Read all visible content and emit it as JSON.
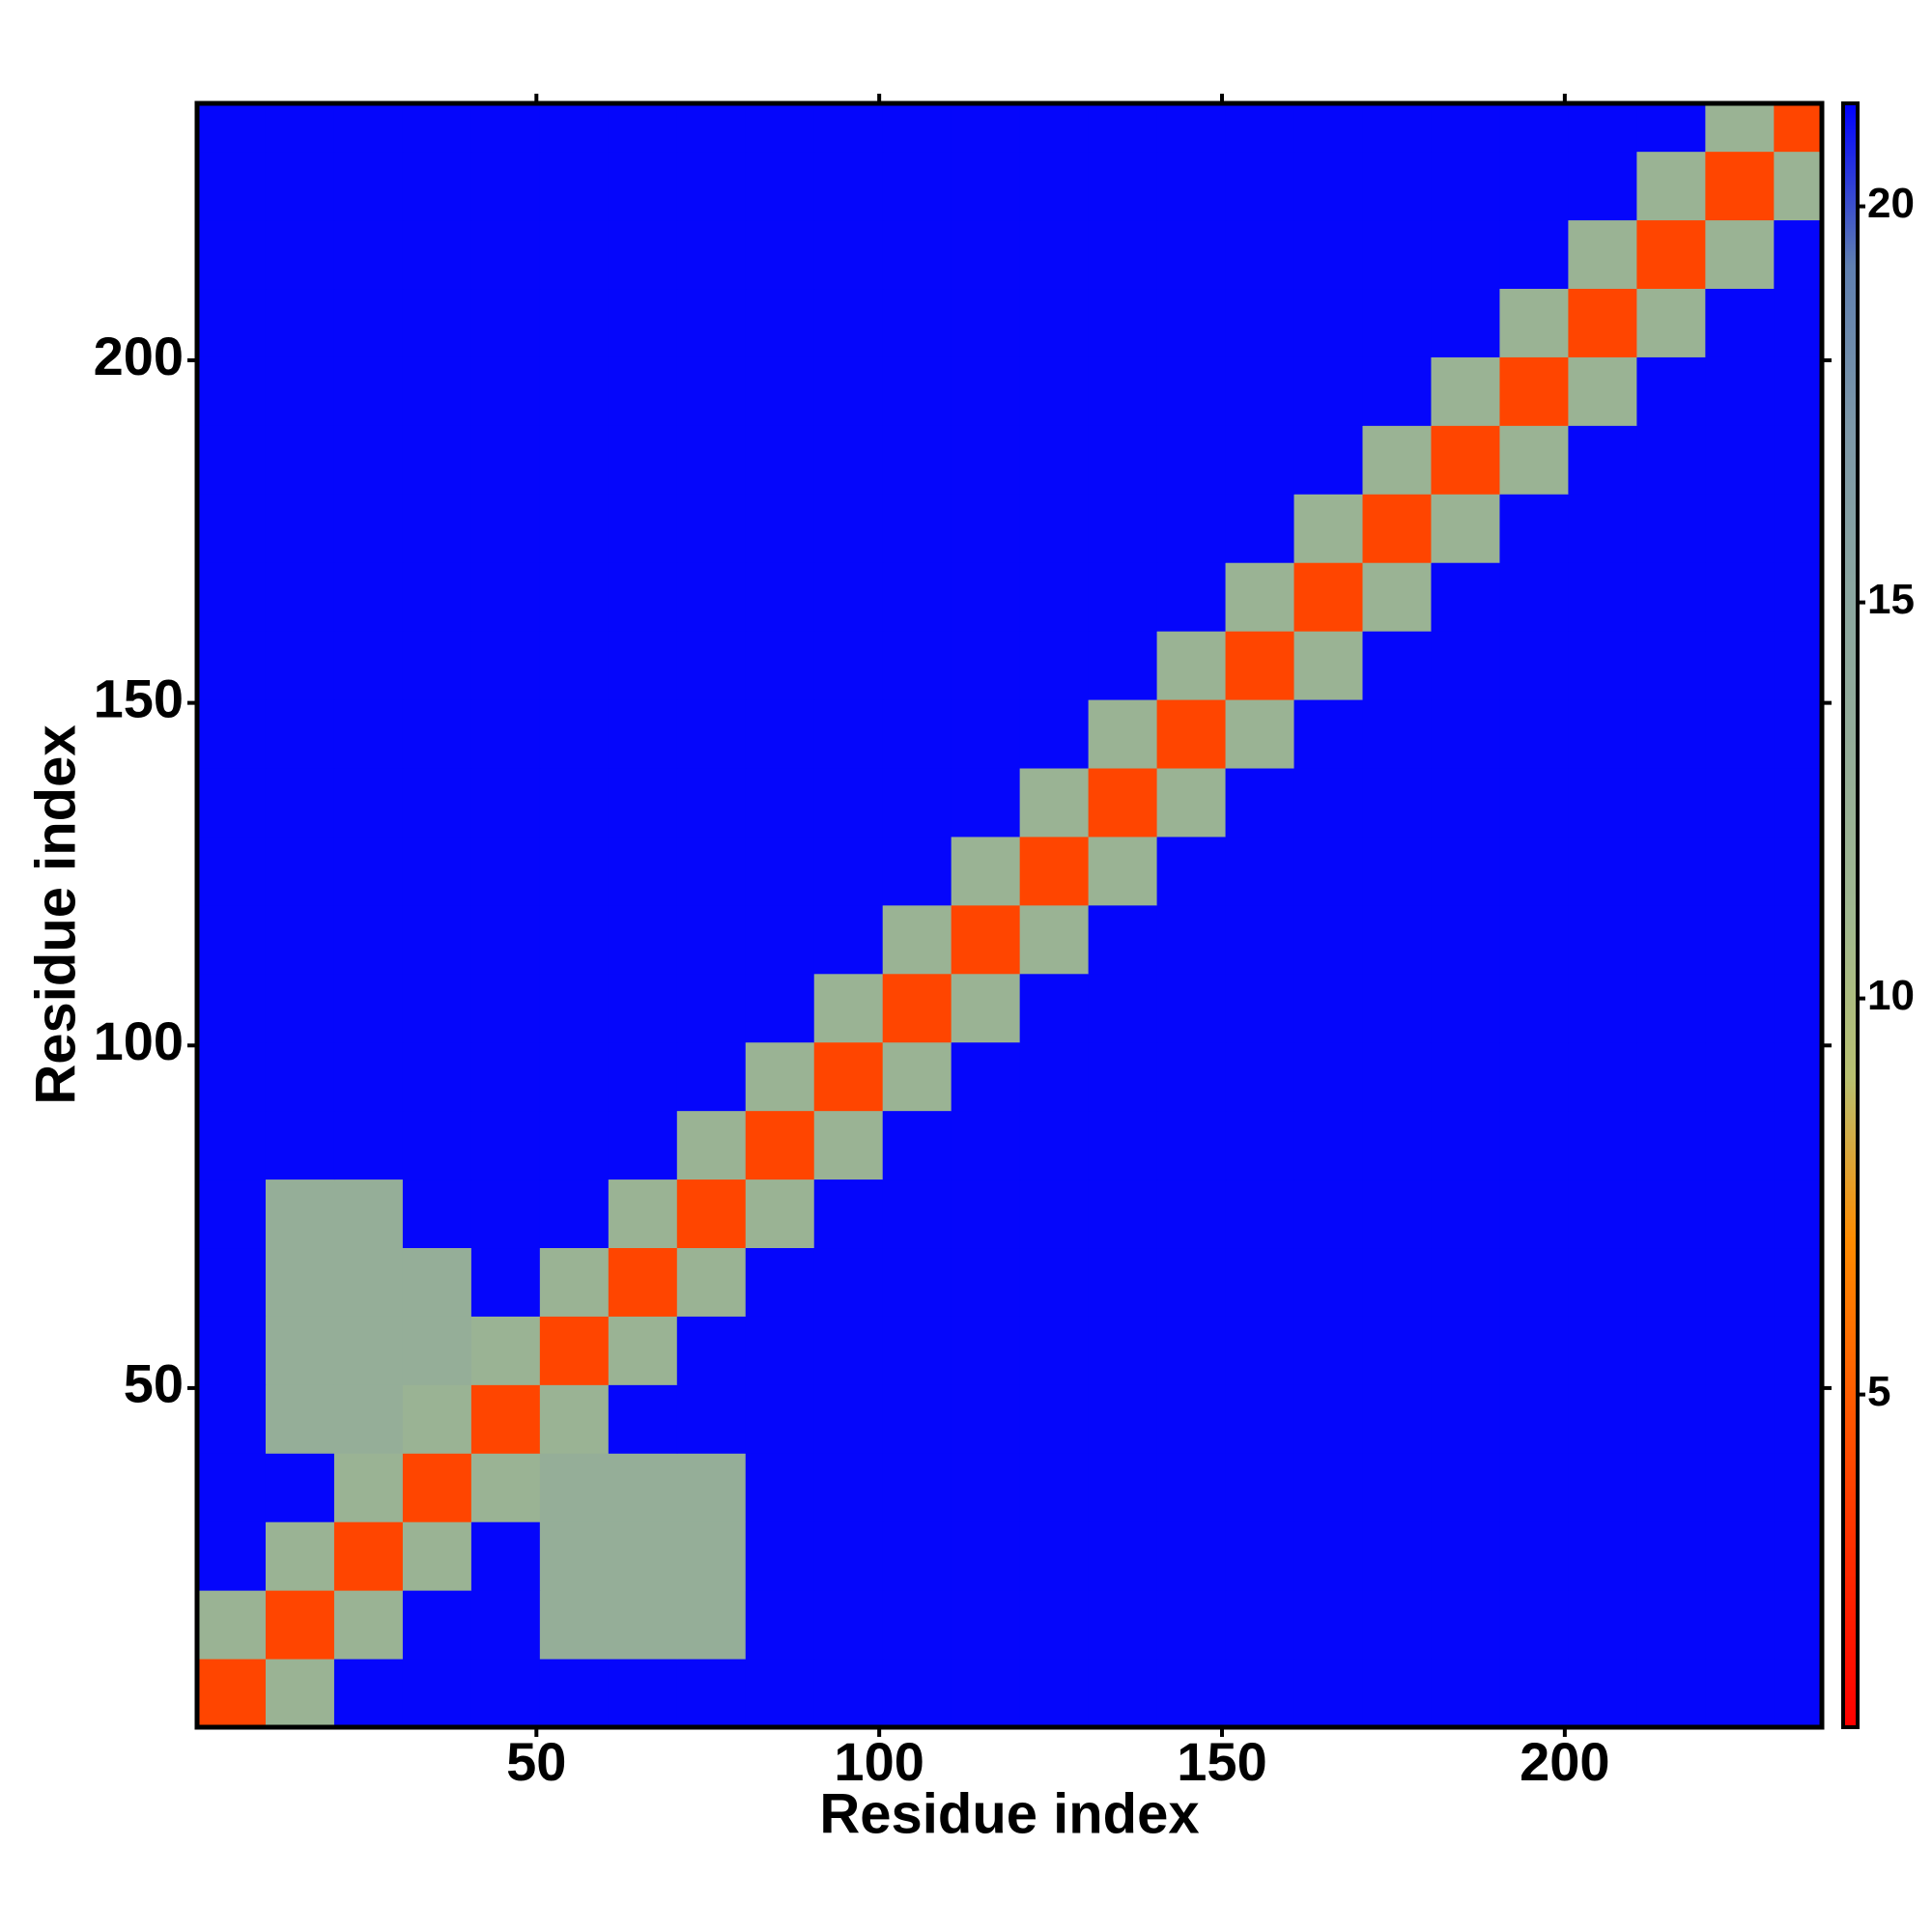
{
  "chart_data": {
    "type": "heatmap",
    "x_label": "Residue index",
    "y_label": "Residue index",
    "xlim": [
      0.5,
      237.5
    ],
    "ylim": [
      0.5,
      237.5
    ],
    "xticks": [
      50,
      100,
      150,
      200
    ],
    "yticks": [
      50,
      100,
      150,
      200
    ],
    "bins": [
      0.5,
      10.5,
      20.5,
      30.5,
      40.5,
      50.5,
      60.5,
      70.5,
      80.5,
      90.5,
      100.5,
      110.5,
      120.5,
      130.5,
      140.5,
      150.5,
      160.5,
      170.5,
      180.5,
      190.5,
      200.5,
      210.5,
      220.5,
      230.5,
      237.5
    ],
    "z": [
      [
        4,
        12,
        21.2,
        21.2,
        21.2,
        21.2,
        21.2,
        21.2,
        21.2,
        21.2,
        21.2,
        21.2,
        21.2,
        21.2,
        21.2,
        21.2,
        21.2,
        21.2,
        21.2,
        21.2,
        21.2,
        21.2,
        21.2,
        21.2
      ],
      [
        12,
        4,
        12,
        21.2,
        21.2,
        13,
        13,
        13,
        21.2,
        21.2,
        21.2,
        21.2,
        21.2,
        21.2,
        21.2,
        21.2,
        21.2,
        21.2,
        21.2,
        21.2,
        21.2,
        21.2,
        21.2,
        21.2
      ],
      [
        21.2,
        12,
        4,
        12,
        21.2,
        13,
        13,
        13,
        21.2,
        21.2,
        21.2,
        21.2,
        21.2,
        21.2,
        21.2,
        21.2,
        21.2,
        21.2,
        21.2,
        21.2,
        21.2,
        21.2,
        21.2,
        21.2
      ],
      [
        21.2,
        21.2,
        12,
        4,
        12,
        13,
        13,
        13,
        21.2,
        21.2,
        21.2,
        21.2,
        21.2,
        21.2,
        21.2,
        21.2,
        21.2,
        21.2,
        21.2,
        21.2,
        21.2,
        21.2,
        21.2,
        21.2
      ],
      [
        21.2,
        13,
        13,
        12,
        4,
        12,
        21.2,
        21.2,
        21.2,
        21.2,
        21.2,
        21.2,
        21.2,
        21.2,
        21.2,
        21.2,
        21.2,
        21.2,
        21.2,
        21.2,
        21.2,
        21.2,
        21.2,
        21.2
      ],
      [
        21.2,
        13,
        13,
        13,
        12,
        4,
        12,
        21.2,
        21.2,
        21.2,
        21.2,
        21.2,
        21.2,
        21.2,
        21.2,
        21.2,
        21.2,
        21.2,
        21.2,
        21.2,
        21.2,
        21.2,
        21.2,
        21.2
      ],
      [
        21.2,
        13,
        13,
        13,
        21.2,
        12,
        4,
        12,
        21.2,
        21.2,
        21.2,
        21.2,
        21.2,
        21.2,
        21.2,
        21.2,
        21.2,
        21.2,
        21.2,
        21.2,
        21.2,
        21.2,
        21.2,
        21.2
      ],
      [
        21.2,
        13,
        13,
        21.2,
        21.2,
        21.2,
        12,
        4,
        12,
        21.2,
        21.2,
        21.2,
        21.2,
        21.2,
        21.2,
        21.2,
        21.2,
        21.2,
        21.2,
        21.2,
        21.2,
        21.2,
        21.2,
        21.2
      ],
      [
        21.2,
        21.2,
        21.2,
        21.2,
        21.2,
        21.2,
        21.2,
        12,
        4,
        12,
        21.2,
        21.2,
        21.2,
        21.2,
        21.2,
        21.2,
        21.2,
        21.2,
        21.2,
        21.2,
        21.2,
        21.2,
        21.2,
        21.2
      ],
      [
        21.2,
        21.2,
        21.2,
        21.2,
        21.2,
        21.2,
        21.2,
        21.2,
        12,
        4,
        12,
        21.2,
        21.2,
        21.2,
        21.2,
        21.2,
        21.2,
        21.2,
        21.2,
        21.2,
        21.2,
        21.2,
        21.2,
        21.2
      ],
      [
        21.2,
        21.2,
        21.2,
        21.2,
        21.2,
        21.2,
        21.2,
        21.2,
        21.2,
        12,
        4,
        12,
        21.2,
        21.2,
        21.2,
        21.2,
        21.2,
        21.2,
        21.2,
        21.2,
        21.2,
        21.2,
        21.2,
        21.2
      ],
      [
        21.2,
        21.2,
        21.2,
        21.2,
        21.2,
        21.2,
        21.2,
        21.2,
        21.2,
        21.2,
        12,
        4,
        12,
        21.2,
        21.2,
        21.2,
        21.2,
        21.2,
        21.2,
        21.2,
        21.2,
        21.2,
        21.2,
        21.2
      ],
      [
        21.2,
        21.2,
        21.2,
        21.2,
        21.2,
        21.2,
        21.2,
        21.2,
        21.2,
        21.2,
        21.2,
        12,
        4,
        12,
        21.2,
        21.2,
        21.2,
        21.2,
        21.2,
        21.2,
        21.2,
        21.2,
        21.2,
        21.2
      ],
      [
        21.2,
        21.2,
        21.2,
        21.2,
        21.2,
        21.2,
        21.2,
        21.2,
        21.2,
        21.2,
        21.2,
        21.2,
        12,
        4,
        12,
        21.2,
        21.2,
        21.2,
        21.2,
        21.2,
        21.2,
        21.2,
        21.2,
        21.2
      ],
      [
        21.2,
        21.2,
        21.2,
        21.2,
        21.2,
        21.2,
        21.2,
        21.2,
        21.2,
        21.2,
        21.2,
        21.2,
        21.2,
        12,
        4,
        12,
        21.2,
        21.2,
        21.2,
        21.2,
        21.2,
        21.2,
        21.2,
        21.2
      ],
      [
        21.2,
        21.2,
        21.2,
        21.2,
        21.2,
        21.2,
        21.2,
        21.2,
        21.2,
        21.2,
        21.2,
        21.2,
        21.2,
        21.2,
        12,
        4,
        12,
        21.2,
        21.2,
        21.2,
        21.2,
        21.2,
        21.2,
        21.2
      ],
      [
        21.2,
        21.2,
        21.2,
        21.2,
        21.2,
        21.2,
        21.2,
        21.2,
        21.2,
        21.2,
        21.2,
        21.2,
        21.2,
        21.2,
        21.2,
        12,
        4,
        12,
        21.2,
        21.2,
        21.2,
        21.2,
        21.2,
        21.2
      ],
      [
        21.2,
        21.2,
        21.2,
        21.2,
        21.2,
        21.2,
        21.2,
        21.2,
        21.2,
        21.2,
        21.2,
        21.2,
        21.2,
        21.2,
        21.2,
        21.2,
        12,
        4,
        12,
        21.2,
        21.2,
        21.2,
        21.2,
        21.2
      ],
      [
        21.2,
        21.2,
        21.2,
        21.2,
        21.2,
        21.2,
        21.2,
        21.2,
        21.2,
        21.2,
        21.2,
        21.2,
        21.2,
        21.2,
        21.2,
        21.2,
        21.2,
        12,
        4,
        12,
        21.2,
        21.2,
        21.2,
        21.2
      ],
      [
        21.2,
        21.2,
        21.2,
        21.2,
        21.2,
        21.2,
        21.2,
        21.2,
        21.2,
        21.2,
        21.2,
        21.2,
        21.2,
        21.2,
        21.2,
        21.2,
        21.2,
        21.2,
        12,
        4,
        12,
        21.2,
        21.2,
        21.2
      ],
      [
        21.2,
        21.2,
        21.2,
        21.2,
        21.2,
        21.2,
        21.2,
        21.2,
        21.2,
        21.2,
        21.2,
        21.2,
        21.2,
        21.2,
        21.2,
        21.2,
        21.2,
        21.2,
        21.2,
        12,
        4,
        12,
        21.2,
        21.2
      ],
      [
        21.2,
        21.2,
        21.2,
        21.2,
        21.2,
        21.2,
        21.2,
        21.2,
        21.2,
        21.2,
        21.2,
        21.2,
        21.2,
        21.2,
        21.2,
        21.2,
        21.2,
        21.2,
        21.2,
        21.2,
        12,
        4,
        12,
        21.2
      ],
      [
        21.2,
        21.2,
        21.2,
        21.2,
        21.2,
        21.2,
        21.2,
        21.2,
        21.2,
        21.2,
        21.2,
        21.2,
        21.2,
        21.2,
        21.2,
        21.2,
        21.2,
        21.2,
        21.2,
        21.2,
        21.2,
        12,
        4,
        12
      ],
      [
        21.2,
        21.2,
        21.2,
        21.2,
        21.2,
        21.2,
        21.2,
        21.2,
        21.2,
        21.2,
        21.2,
        21.2,
        21.2,
        21.2,
        21.2,
        21.2,
        21.2,
        21.2,
        21.2,
        21.2,
        21.2,
        21.2,
        12,
        4
      ]
    ],
    "zlim": [
      0.8,
      21.3
    ],
    "zticks": [
      5,
      10,
      15,
      20
    ],
    "colors": [
      "#ff0000",
      "#ff2a00",
      "#ff5a00",
      "#ff8c00",
      "#b8c070",
      "#a0b890",
      "#94ad98",
      "#8aa6a0",
      "#7d98a8",
      "#5f7fb0",
      "#0000ff"
    ]
  }
}
